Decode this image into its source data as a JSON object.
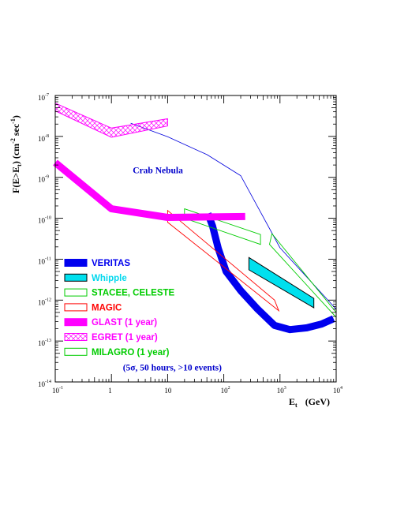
{
  "chart_data": {
    "type": "line",
    "x_scale": "log",
    "y_scale": "log",
    "xlim": [
      0.1,
      10000
    ],
    "ylim": [
      1e-14,
      1e-07
    ],
    "xlabel": {
      "main": "E",
      "sub": "t",
      "rest": "(GeV)"
    },
    "ylabel": {
      "a": "F(E>E",
      "a_sub": "t",
      "b": ") (cm",
      "b_sup": "-2",
      "c": " sec",
      "c_sup": "-1",
      "d": ")"
    },
    "x_ticks": [
      {
        "value": 0.1,
        "base": "10",
        "exp": "-1"
      },
      {
        "value": 1,
        "base": "1",
        "exp": ""
      },
      {
        "value": 10,
        "base": "10",
        "exp": ""
      },
      {
        "value": 100,
        "base": "10",
        "exp": "2"
      },
      {
        "value": 1000,
        "base": "10",
        "exp": "3"
      },
      {
        "value": 10000,
        "base": "10",
        "exp": "4"
      }
    ],
    "y_ticks": [
      {
        "value": 1e-14,
        "base": "10",
        "exp": "-14"
      },
      {
        "value": 1e-13,
        "base": "10",
        "exp": "-13"
      },
      {
        "value": 1e-12,
        "base": "10",
        "exp": "-12"
      },
      {
        "value": 1e-11,
        "base": "10",
        "exp": "-11"
      },
      {
        "value": 1e-10,
        "base": "10",
        "exp": "-10"
      },
      {
        "value": 1e-09,
        "base": "10",
        "exp": "-9"
      },
      {
        "value": 1e-08,
        "base": "10",
        "exp": "-8"
      },
      {
        "value": 1e-07,
        "base": "10",
        "exp": "-7"
      }
    ],
    "grid": false,
    "legend_position": "bottom-left",
    "annotations": [
      {
        "id": "crab-nebula-label",
        "text": "Crab Nebula",
        "color": "#0000cc",
        "x": 2.4,
        "y": 1.25e-09
      },
      {
        "id": "observation-note",
        "text": "(5σ, 50 hours, >10 events)",
        "color": "#0000cc",
        "x": 1.6,
        "y": 1.9e-14
      }
    ],
    "series": [
      {
        "name": "Crab Nebula",
        "kind": "line",
        "color": "#0000dd",
        "width": 0.8,
        "points": [
          [
            2.2,
            2.1e-08
          ],
          [
            10,
            9.8e-09
          ],
          [
            50,
            3.6e-09
          ],
          [
            200,
            1.1e-09
          ],
          [
            1000,
            1.9e-11
          ],
          [
            10000,
            6e-13
          ]
        ]
      },
      {
        "name": "VERITAS",
        "kind": "line",
        "color": "#0000ee",
        "width": 9,
        "points": [
          [
            52,
            1.3e-10
          ],
          [
            63,
            6.5e-11
          ],
          [
            80,
            1.8e-11
          ],
          [
            110,
            5e-12
          ],
          [
            200,
            1.7e-12
          ],
          [
            400,
            6e-13
          ],
          [
            800,
            2.4e-13
          ],
          [
            1500,
            1.9e-13
          ],
          [
            3000,
            2.1e-13
          ],
          [
            5500,
            2.6e-13
          ],
          [
            9000,
            3.5e-13
          ]
        ]
      },
      {
        "name": "Whipple",
        "kind": "band",
        "color": "#00e0ee",
        "stroke": "#000000",
        "polygon": [
          [
            280,
            1.1e-11
          ],
          [
            4000,
            1.1e-12
          ],
          [
            4000,
            6.5e-13
          ],
          [
            280,
            5.5e-12
          ]
        ]
      },
      {
        "name": "STACEE, CELESTE",
        "kind": "outline",
        "color": "#00cc00",
        "polygons": [
          [
            [
              20,
              1.7e-10
            ],
            [
              450,
              4e-11
            ],
            [
              450,
              2.3e-11
            ],
            [
              20,
              1e-10
            ]
          ],
          [
            [
              720,
              4.2e-11
            ],
            [
              10000,
              5e-13
            ],
            [
              10000,
              3.8e-13
            ],
            [
              650,
              2.3e-11
            ]
          ]
        ]
      },
      {
        "name": "MAGIC",
        "kind": "outline",
        "color": "#ff0000",
        "polygon": [
          [
            10,
            1.55e-10
          ],
          [
            800,
            1e-12
          ],
          [
            950,
            5.5e-13
          ],
          [
            10,
            8e-11
          ]
        ]
      },
      {
        "name": "GLAST (1 year)",
        "kind": "line",
        "color": "#ff00ff",
        "width": 9,
        "points": [
          [
            0.1,
            2.3e-09
          ],
          [
            1,
            1.7e-10
          ],
          [
            10,
            1.05e-10
          ],
          [
            240,
            1.1e-10
          ]
        ]
      },
      {
        "name": "EGRET (1 year)",
        "kind": "hatched",
        "color": "#ff00ff",
        "polygon": [
          [
            0.1,
            6.5e-08
          ],
          [
            1,
            1.6e-08
          ],
          [
            10,
            2.7e-08
          ],
          [
            10,
            1.8e-08
          ],
          [
            1,
            9.5e-09
          ],
          [
            0.1,
            4.2e-08
          ]
        ]
      },
      {
        "name": "MILAGRO (1 year)",
        "kind": "outline",
        "color": "#00cc00",
        "legend_only": true
      }
    ],
    "legend": [
      {
        "label": "VERITAS",
        "color": "#0000ee",
        "swatch": "filled-band",
        "fill": "#0000ee"
      },
      {
        "label": "Whipple",
        "color": "#00d8ee",
        "swatch": "filled-outline",
        "fill": "#00e0ee"
      },
      {
        "label": "STACEE, CELESTE",
        "color": "#00cc00",
        "swatch": "outline"
      },
      {
        "label": "MAGIC",
        "color": "#ff0000",
        "swatch": "outline"
      },
      {
        "label": "GLAST (1 year)",
        "color": "#ff00ff",
        "swatch": "filled-band",
        "fill": "#ff00ff"
      },
      {
        "label": "EGRET (1 year)",
        "color": "#ff00ff",
        "swatch": "hatched"
      },
      {
        "label": "MILAGRO (1 year)",
        "color": "#00cc00",
        "swatch": "outline"
      }
    ]
  }
}
